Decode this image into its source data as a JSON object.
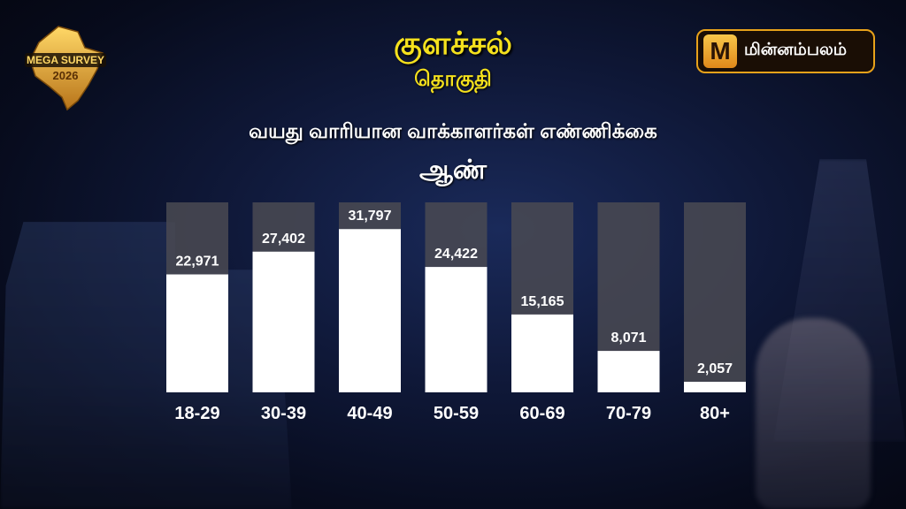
{
  "title": "குளச்சல்",
  "subtitle": "தொகுதி",
  "heading": "வயது வாரியான வாக்காளர்கள் எண்ணிக்கை",
  "gender_label": "ஆண்",
  "logo_left": {
    "lines": [
      "MEGA SURVEY",
      "2026"
    ]
  },
  "logo_right": {
    "icon_letter": "M",
    "brand": "மின்னம்பலம்",
    "accent_color": "#e8a21a"
  },
  "colors": {
    "title": "#f5e11d",
    "bar_fill": "#ffffff",
    "bar_track": "#4a4a52"
  },
  "chart_data": {
    "type": "bar",
    "title": "வயது வாரியான வாக்காளர்கள் எண்ணிக்கை",
    "categories": [
      "18-29",
      "30-39",
      "40-49",
      "50-59",
      "60-69",
      "70-79",
      "80+"
    ],
    "values": [
      22971,
      27402,
      31797,
      24422,
      15165,
      8071,
      2057
    ],
    "value_labels": [
      "22,971",
      "27,402",
      "31,797",
      "24,422",
      "15,165",
      "8,071",
      "2,057"
    ],
    "series": [
      {
        "name": "ஆண்",
        "values": [
          22971,
          27402,
          31797,
          24422,
          15165,
          8071,
          2057
        ]
      }
    ],
    "ylim": [
      0,
      37000
    ],
    "grid": false,
    "legend": "none"
  }
}
